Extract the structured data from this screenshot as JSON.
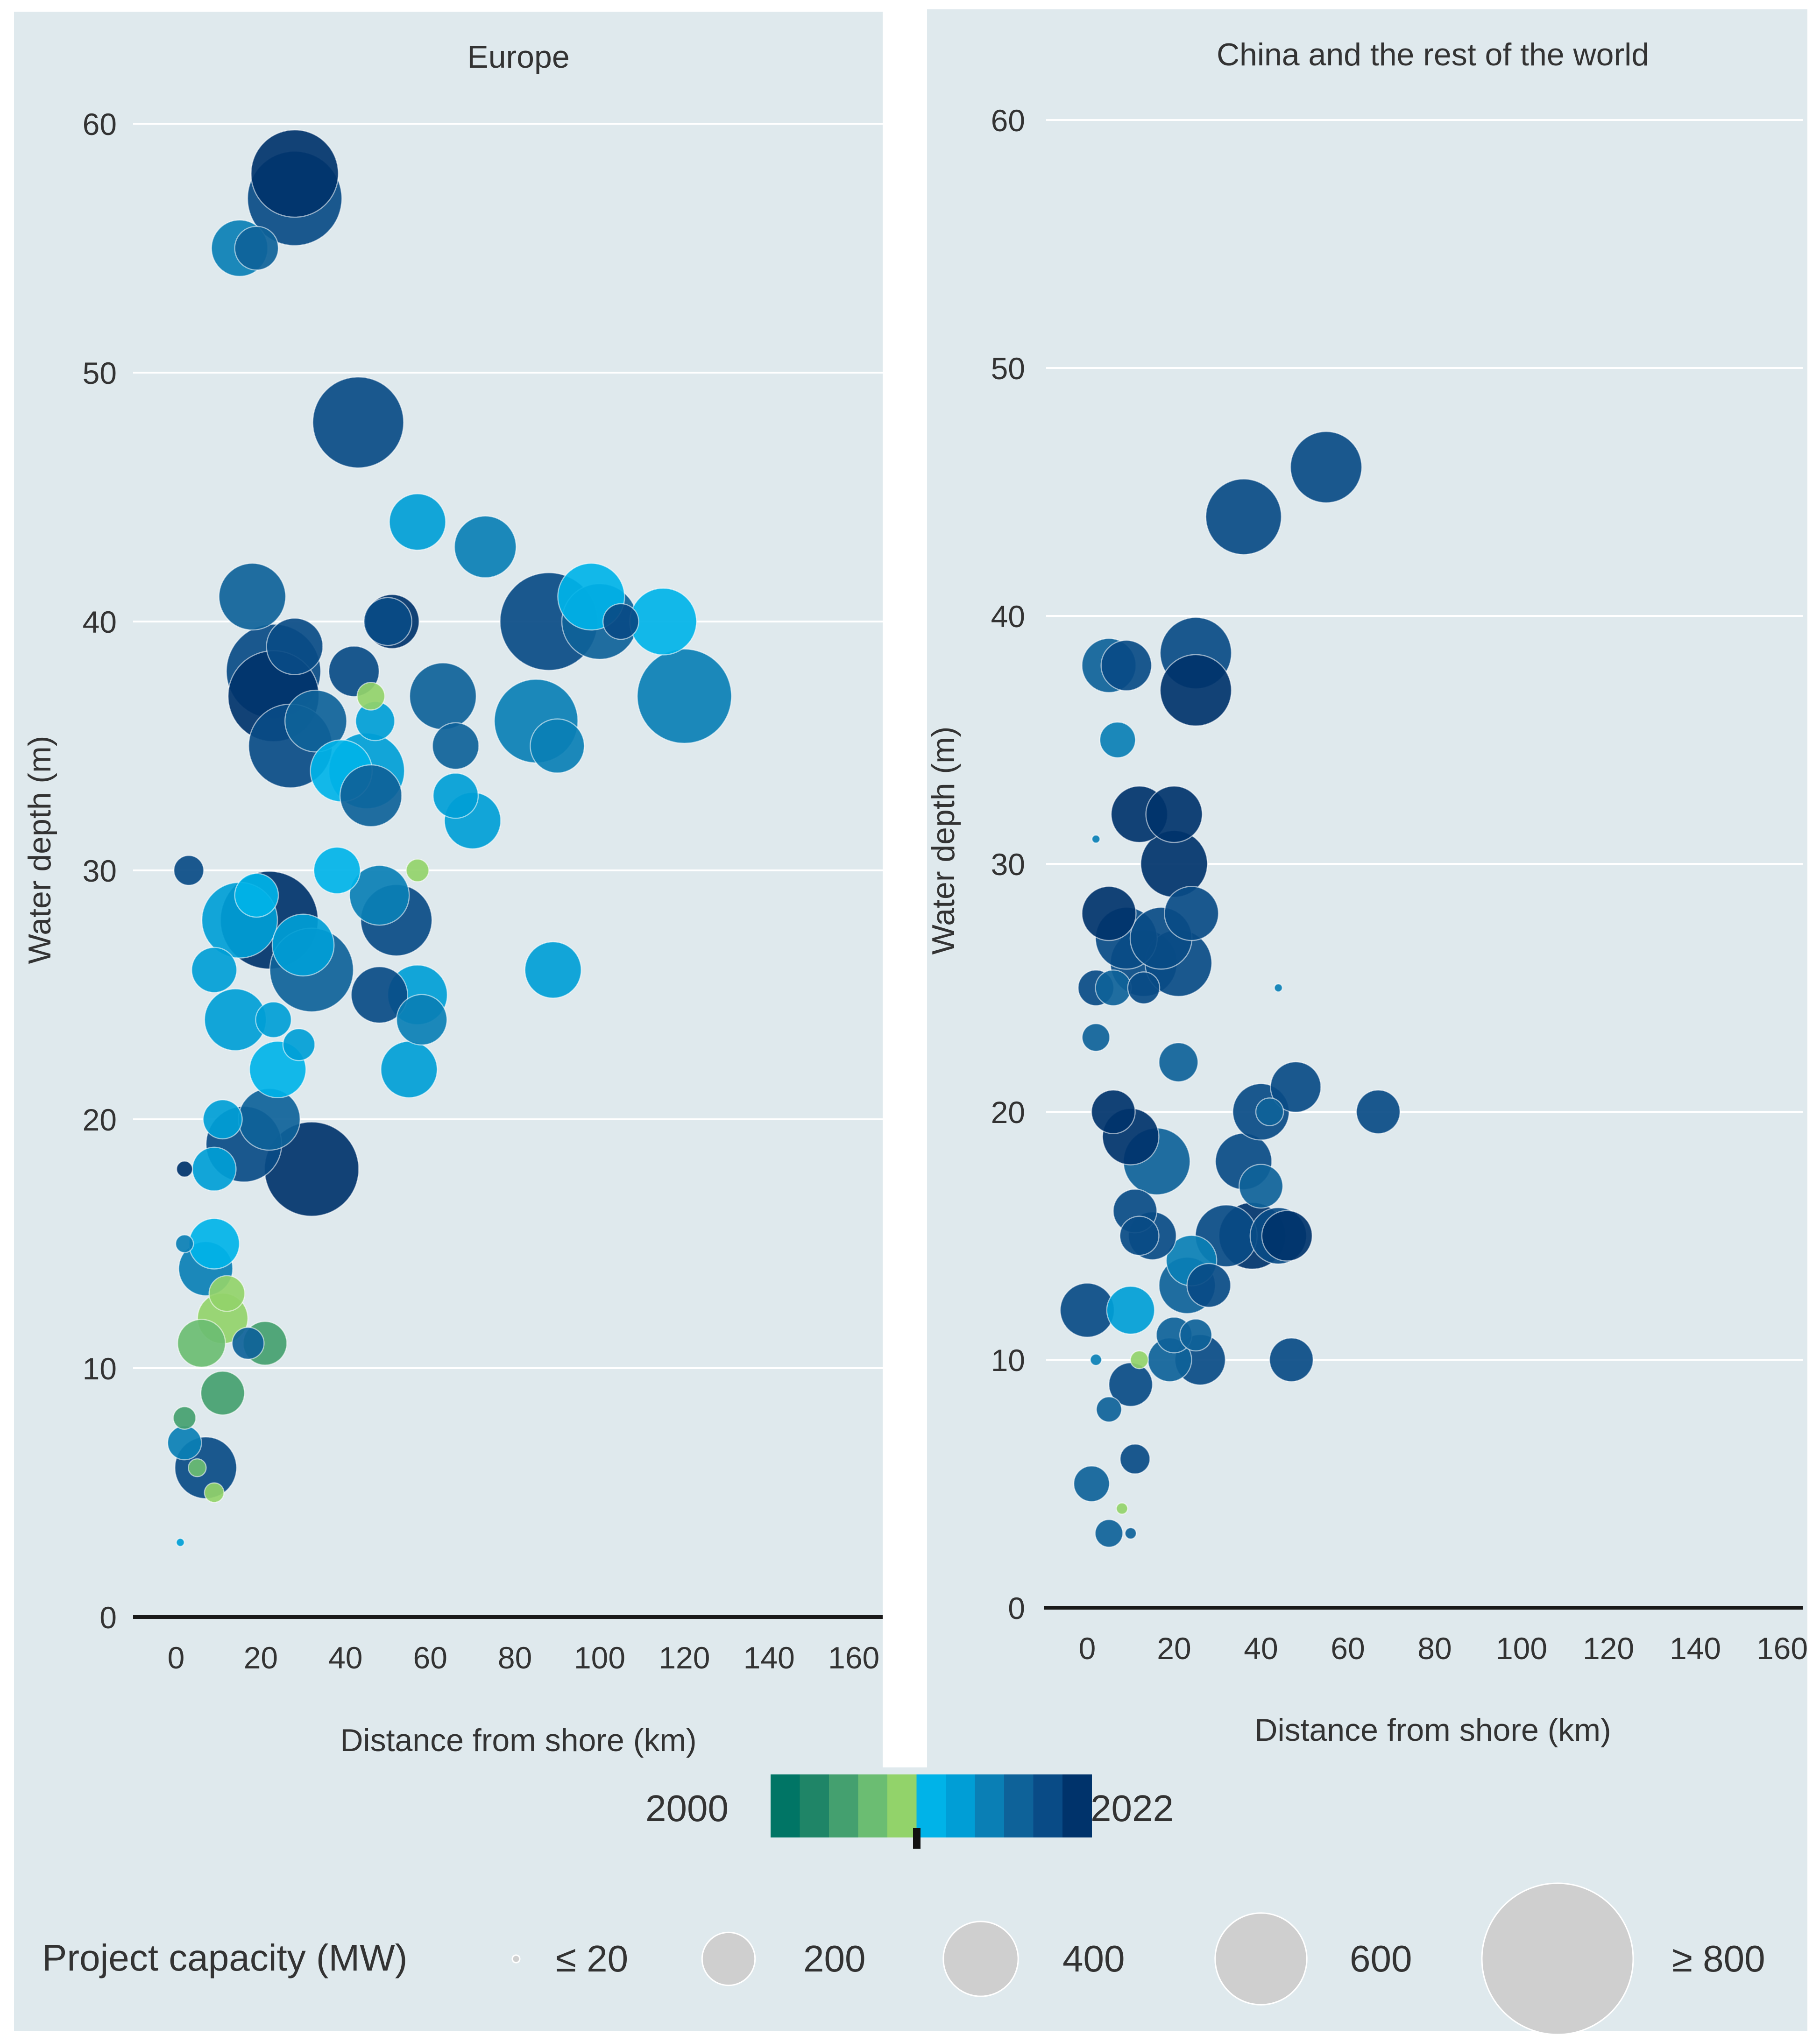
{
  "colors": {
    "panel_bg": "#dfe9ed",
    "gridline": "#ffffff",
    "axis_line": "#1a1a1a",
    "text": "#333333",
    "legend_bubble": "#cfcfcf",
    "scale_first": "#007565",
    "scale_last": "#00336b"
  },
  "color_scale": {
    "start_label": "2000",
    "end_label": "2022",
    "swatches": [
      "#007565",
      "#1f8567",
      "#44a06f",
      "#6bbd72",
      "#92d36a",
      "#00b3e8",
      "#009ed6",
      "#0a7fb5",
      "#0e6299",
      "#094b86",
      "#00336b"
    ]
  },
  "size_legend": {
    "title": "Project capacity (MW)",
    "items": [
      {
        "label": "≤ 20",
        "mw": 20
      },
      {
        "label": "200",
        "mw": 200
      },
      {
        "label": "400",
        "mw": 400
      },
      {
        "label": "600",
        "mw": 600
      },
      {
        "label": "≥ 800",
        "mw": 800
      }
    ]
  },
  "chart_data": [
    {
      "type": "scatter",
      "title": "Europe",
      "xlabel": "Distance from shore (km)",
      "ylabel": "Water depth (m)",
      "xlim": [
        -10,
        165
      ],
      "ylim": [
        0,
        60
      ],
      "xticks": [
        "0",
        "20",
        "40",
        "60",
        "80",
        "100",
        "120",
        "140",
        "160"
      ],
      "yticks": [
        "0",
        "10",
        "20",
        "30",
        "40",
        "50",
        "60"
      ],
      "grid": true,
      "points": [
        {
          "x": 15,
          "y": 55,
          "mw": 250,
          "c": 7
        },
        {
          "x": 19,
          "y": 55,
          "mw": 150,
          "c": 8
        },
        {
          "x": 28,
          "y": 57,
          "mw": 700,
          "c": 9
        },
        {
          "x": 28,
          "y": 58,
          "mw": 600,
          "c": 10
        },
        {
          "x": 43,
          "y": 48,
          "mw": 650,
          "c": 9
        },
        {
          "x": 57,
          "y": 44,
          "mw": 250,
          "c": 6
        },
        {
          "x": 73,
          "y": 43,
          "mw": 300,
          "c": 7
        },
        {
          "x": 18,
          "y": 41,
          "mw": 350,
          "c": 8
        },
        {
          "x": 28,
          "y": 39,
          "mw": 250,
          "c": 9
        },
        {
          "x": 23,
          "y": 38,
          "mw": 700,
          "c": 9
        },
        {
          "x": 23,
          "y": 37,
          "mw": 650,
          "c": 10
        },
        {
          "x": 27,
          "y": 35,
          "mw": 550,
          "c": 9
        },
        {
          "x": 33,
          "y": 36,
          "mw": 300,
          "c": 8
        },
        {
          "x": 42,
          "y": 38,
          "mw": 200,
          "c": 9
        },
        {
          "x": 46,
          "y": 37,
          "mw": 60,
          "c": 4
        },
        {
          "x": 51,
          "y": 40,
          "mw": 230,
          "c": 10
        },
        {
          "x": 50,
          "y": 40,
          "mw": 180,
          "c": 9
        },
        {
          "x": 39,
          "y": 34,
          "mw": 300,
          "c": 5
        },
        {
          "x": 45,
          "y": 34,
          "mw": 450,
          "c": 6
        },
        {
          "x": 46,
          "y": 33,
          "mw": 300,
          "c": 8
        },
        {
          "x": 47,
          "y": 36,
          "mw": 120,
          "c": 6
        },
        {
          "x": 63,
          "y": 37,
          "mw": 350,
          "c": 8
        },
        {
          "x": 66,
          "y": 35,
          "mw": 170,
          "c": 8
        },
        {
          "x": 66,
          "y": 33,
          "mw": 160,
          "c": 6
        },
        {
          "x": 70,
          "y": 32,
          "mw": 250,
          "c": 6
        },
        {
          "x": 85,
          "y": 36,
          "mw": 550,
          "c": 7
        },
        {
          "x": 90,
          "y": 35,
          "mw": 230,
          "c": 7
        },
        {
          "x": 88,
          "y": 40,
          "mw": 750,
          "c": 9
        },
        {
          "x": 98,
          "y": 41,
          "mw": 350,
          "c": 5
        },
        {
          "x": 100,
          "y": 40,
          "mw": 450,
          "c": 8
        },
        {
          "x": 105,
          "y": 40,
          "mw": 100,
          "c": 9
        },
        {
          "x": 115,
          "y": 40,
          "mw": 350,
          "c": 5
        },
        {
          "x": 120,
          "y": 37,
          "mw": 700,
          "c": 7
        },
        {
          "x": 89,
          "y": 26,
          "mw": 250,
          "c": 6
        },
        {
          "x": 3,
          "y": 30,
          "mw": 70,
          "c": 9
        },
        {
          "x": 19,
          "y": 29,
          "mw": 150,
          "c": 5
        },
        {
          "x": 15,
          "y": 28,
          "mw": 450,
          "c": 6
        },
        {
          "x": 22,
          "y": 28,
          "mw": 750,
          "c": 10
        },
        {
          "x": 30,
          "y": 27,
          "mw": 300,
          "c": 6
        },
        {
          "x": 32,
          "y": 26,
          "mw": 550,
          "c": 8
        },
        {
          "x": 38,
          "y": 30,
          "mw": 170,
          "c": 5
        },
        {
          "x": 48,
          "y": 29,
          "mw": 280,
          "c": 7
        },
        {
          "x": 52,
          "y": 28,
          "mw": 400,
          "c": 9
        },
        {
          "x": 48,
          "y": 25,
          "mw": 250,
          "c": 9
        },
        {
          "x": 57,
          "y": 25,
          "mw": 280,
          "c": 6
        },
        {
          "x": 58,
          "y": 24,
          "mw": 200,
          "c": 7
        },
        {
          "x": 55,
          "y": 22,
          "mw": 250,
          "c": 6
        },
        {
          "x": 57,
          "y": 30,
          "mw": 40,
          "c": 4
        },
        {
          "x": 9,
          "y": 26,
          "mw": 160,
          "c": 6
        },
        {
          "x": 14,
          "y": 24,
          "mw": 300,
          "c": 6
        },
        {
          "x": 23,
          "y": 24,
          "mw": 100,
          "c": 6
        },
        {
          "x": 24,
          "y": 22,
          "mw": 250,
          "c": 5
        },
        {
          "x": 29,
          "y": 23,
          "mw": 80,
          "c": 6
        },
        {
          "x": 22,
          "y": 20,
          "mw": 300,
          "c": 8
        },
        {
          "x": 16,
          "y": 19,
          "mw": 450,
          "c": 9
        },
        {
          "x": 11,
          "y": 20,
          "mw": 120,
          "c": 6
        },
        {
          "x": 9,
          "y": 18,
          "mw": 150,
          "c": 6
        },
        {
          "x": 32,
          "y": 18,
          "mw": 700,
          "c": 10
        },
        {
          "x": 9,
          "y": 15,
          "mw": 200,
          "c": 5
        },
        {
          "x": 7,
          "y": 14,
          "mw": 230,
          "c": 7
        },
        {
          "x": 2,
          "y": 15,
          "mw": 25,
          "c": 7
        },
        {
          "x": 12,
          "y": 13,
          "mw": 100,
          "c": 4
        },
        {
          "x": 11,
          "y": 12,
          "mw": 200,
          "c": 4
        },
        {
          "x": 6,
          "y": 11,
          "mw": 180,
          "c": 3
        },
        {
          "x": 21,
          "y": 11,
          "mw": 150,
          "c": 2
        },
        {
          "x": 17,
          "y": 11,
          "mw": 80,
          "c": 8
        },
        {
          "x": 11,
          "y": 9,
          "mw": 150,
          "c": 2
        },
        {
          "x": 2,
          "y": 8,
          "mw": 40,
          "c": 2
        },
        {
          "x": 2,
          "y": 7,
          "mw": 90,
          "c": 7
        },
        {
          "x": 7,
          "y": 6,
          "mw": 300,
          "c": 9
        },
        {
          "x": 5,
          "y": 6,
          "mw": 25,
          "c": 3
        },
        {
          "x": 9,
          "y": 5,
          "mw": 30,
          "c": 4
        },
        {
          "x": 2,
          "y": 18,
          "mw": 20,
          "c": 10
        },
        {
          "x": 1,
          "y": 3,
          "mw": 5,
          "c": 6
        }
      ]
    },
    {
      "type": "scatter",
      "title": "China and the rest of the world",
      "xlabel": "Distance from shore (km)",
      "ylabel": "Water depth (m)",
      "xlim": [
        -10,
        165
      ],
      "ylim": [
        0,
        60
      ],
      "xticks": [
        "0",
        "20",
        "40",
        "60",
        "80",
        "100",
        "120",
        "140",
        "160"
      ],
      "yticks": [
        "0",
        "10",
        "20",
        "30",
        "40",
        "50",
        "60"
      ],
      "grid": true,
      "points": [
        {
          "x": 36,
          "y": 44,
          "mw": 450,
          "c": 9
        },
        {
          "x": 55,
          "y": 46,
          "mw": 400,
          "c": 9
        },
        {
          "x": 25,
          "y": 38.5,
          "mw": 400,
          "c": 9
        },
        {
          "x": 25,
          "y": 37,
          "mw": 400,
          "c": 10
        },
        {
          "x": 5,
          "y": 38,
          "mw": 230,
          "c": 8
        },
        {
          "x": 9,
          "y": 38,
          "mw": 200,
          "c": 9
        },
        {
          "x": 7,
          "y": 35,
          "mw": 100,
          "c": 7
        },
        {
          "x": 12,
          "y": 32,
          "mw": 250,
          "c": 10
        },
        {
          "x": 20,
          "y": 32,
          "mw": 250,
          "c": 10
        },
        {
          "x": 20,
          "y": 30,
          "mw": 350,
          "c": 10
        },
        {
          "x": 24,
          "y": 28,
          "mw": 230,
          "c": 9
        },
        {
          "x": 5,
          "y": 28,
          "mw": 230,
          "c": 10
        },
        {
          "x": 9,
          "y": 27,
          "mw": 300,
          "c": 9
        },
        {
          "x": 13,
          "y": 26,
          "mw": 350,
          "c": 9
        },
        {
          "x": 17,
          "y": 27,
          "mw": 300,
          "c": 9
        },
        {
          "x": 21,
          "y": 26,
          "mw": 350,
          "c": 9
        },
        {
          "x": 2,
          "y": 25,
          "mw": 100,
          "c": 9
        },
        {
          "x": 6,
          "y": 25,
          "mw": 100,
          "c": 8
        },
        {
          "x": 13,
          "y": 25,
          "mw": 80,
          "c": 9
        },
        {
          "x": 2,
          "y": 23,
          "mw": 60,
          "c": 8
        },
        {
          "x": 21,
          "y": 22,
          "mw": 120,
          "c": 8
        },
        {
          "x": 44,
          "y": 25,
          "mw": 5,
          "c": 7
        },
        {
          "x": 6,
          "y": 20,
          "mw": 150,
          "c": 10
        },
        {
          "x": 10,
          "y": 19,
          "mw": 250,
          "c": 10
        },
        {
          "x": 16,
          "y": 18,
          "mw": 350,
          "c": 8
        },
        {
          "x": 11,
          "y": 16,
          "mw": 150,
          "c": 9
        },
        {
          "x": 15,
          "y": 15,
          "mw": 180,
          "c": 9
        },
        {
          "x": 12,
          "y": 15,
          "mw": 120,
          "c": 9
        },
        {
          "x": 36,
          "y": 18,
          "mw": 250,
          "c": 9
        },
        {
          "x": 40,
          "y": 17,
          "mw": 150,
          "c": 8
        },
        {
          "x": 40,
          "y": 20,
          "mw": 250,
          "c": 9
        },
        {
          "x": 48,
          "y": 21,
          "mw": 200,
          "c": 9
        },
        {
          "x": 67,
          "y": 20,
          "mw": 150,
          "c": 9
        },
        {
          "x": 42,
          "y": 20,
          "mw": 60,
          "c": 8
        },
        {
          "x": 32,
          "y": 15,
          "mw": 300,
          "c": 9
        },
        {
          "x": 38,
          "y": 15,
          "mw": 350,
          "c": 10
        },
        {
          "x": 44,
          "y": 15,
          "mw": 250,
          "c": 9
        },
        {
          "x": 46,
          "y": 15,
          "mw": 200,
          "c": 10
        },
        {
          "x": 24,
          "y": 14,
          "mw": 200,
          "c": 7
        },
        {
          "x": 23,
          "y": 13,
          "mw": 250,
          "c": 8
        },
        {
          "x": 28,
          "y": 13,
          "mw": 150,
          "c": 9
        },
        {
          "x": 10,
          "y": 12,
          "mw": 180,
          "c": 6
        },
        {
          "x": 0,
          "y": 12,
          "mw": 230,
          "c": 9
        },
        {
          "x": 20,
          "y": 11,
          "mw": 100,
          "c": 8
        },
        {
          "x": 25,
          "y": 11,
          "mw": 80,
          "c": 8
        },
        {
          "x": 19,
          "y": 10,
          "mw": 150,
          "c": 8
        },
        {
          "x": 26,
          "y": 10,
          "mw": 200,
          "c": 9
        },
        {
          "x": 47,
          "y": 10,
          "mw": 150,
          "c": 9
        },
        {
          "x": 12,
          "y": 10,
          "mw": 25,
          "c": 4
        },
        {
          "x": 2,
          "y": 10,
          "mw": 10,
          "c": 7
        },
        {
          "x": 10,
          "y": 9,
          "mw": 150,
          "c": 9
        },
        {
          "x": 5,
          "y": 8,
          "mw": 50,
          "c": 8
        },
        {
          "x": 11,
          "y": 6,
          "mw": 70,
          "c": 9
        },
        {
          "x": 1,
          "y": 5,
          "mw": 100,
          "c": 8
        },
        {
          "x": 8,
          "y": 4,
          "mw": 10,
          "c": 4
        },
        {
          "x": 5,
          "y": 3,
          "mw": 60,
          "c": 8
        },
        {
          "x": 10,
          "y": 3,
          "mw": 10,
          "c": 8
        },
        {
          "x": 2,
          "y": 31,
          "mw": 5,
          "c": 7
        }
      ]
    }
  ]
}
